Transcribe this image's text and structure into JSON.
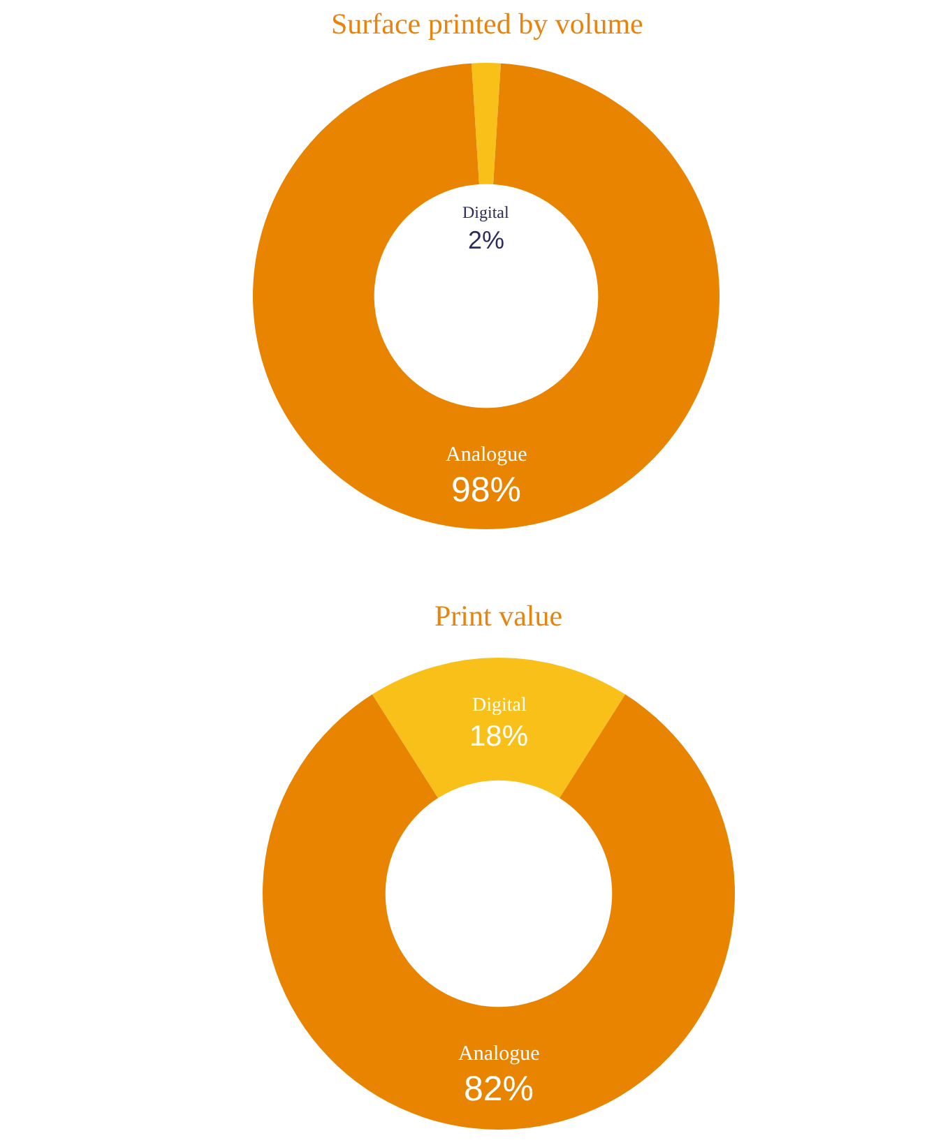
{
  "chart_data": [
    {
      "type": "donut",
      "title": "Surface printed by volume",
      "categories": [
        "Digital",
        "Analogue"
      ],
      "values": [
        2,
        98
      ],
      "colors": [
        "#f8c018",
        "#e88400"
      ],
      "value_labels": [
        "2%",
        "98%"
      ]
    },
    {
      "type": "donut",
      "title": "Print value",
      "categories": [
        "Digital",
        "Analogue"
      ],
      "values": [
        18,
        82
      ],
      "colors": [
        "#f8c018",
        "#e88400"
      ],
      "value_labels": [
        "18%",
        "82%"
      ]
    }
  ]
}
